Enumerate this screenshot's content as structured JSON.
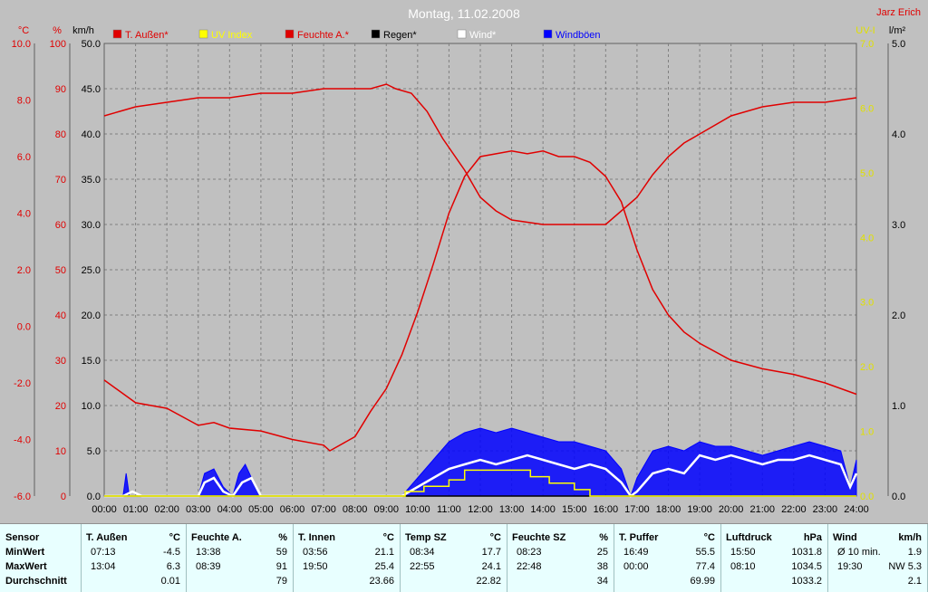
{
  "chart_data": {
    "type": "line",
    "title": "Montag, 11.02.2008",
    "corner_label": "Jarz Erich",
    "x_ticks": [
      "00:00",
      "01:00",
      "02:00",
      "03:00",
      "04:00",
      "05:00",
      "06:00",
      "07:00",
      "08:00",
      "09:00",
      "10:00",
      "11:00",
      "12:00",
      "13:00",
      "14:00",
      "15:00",
      "16:00",
      "17:00",
      "18:00",
      "19:00",
      "20:00",
      "21:00",
      "22:00",
      "23:00",
      "24:00"
    ],
    "axes": {
      "celsius": {
        "unit": "°C",
        "ticks": [
          "10.0",
          "8.0",
          "6.0",
          "4.0",
          "2.0",
          "0.0",
          "-2.0",
          "-4.0",
          "-6.0"
        ],
        "range": [
          -6,
          10
        ],
        "color": "#e00000"
      },
      "percent": {
        "unit": "%",
        "ticks": [
          "100",
          "90",
          "80",
          "70",
          "60",
          "50",
          "40",
          "30",
          "20",
          "10",
          "0"
        ],
        "range": [
          0,
          100
        ],
        "color": "#e00000"
      },
      "kmh": {
        "unit": "km/h",
        "ticks": [
          "50.0",
          "45.0",
          "40.0",
          "35.0",
          "30.0",
          "25.0",
          "20.0",
          "15.0",
          "10.0",
          "5.0",
          "0.0"
        ],
        "range": [
          0,
          50
        ],
        "color": "#000000"
      },
      "uv": {
        "unit": "UV-I",
        "ticks": [
          "7.0",
          "6.0",
          "5.0",
          "4.0",
          "3.0",
          "2.0",
          "1.0",
          "0.0"
        ],
        "range": [
          0,
          7
        ],
        "color": "#e0e000"
      },
      "rain": {
        "unit": "l/m²",
        "ticks": [
          "5.0",
          "4.0",
          "3.0",
          "2.0",
          "1.0",
          "0.0"
        ],
        "range": [
          0,
          5
        ],
        "color": "#000000"
      }
    },
    "legend": [
      {
        "name": "T. Außen*",
        "color": "#e00000"
      },
      {
        "name": "UV Index",
        "color": "#ffff00"
      },
      {
        "name": "Feuchte A.*",
        "color": "#e00000"
      },
      {
        "name": "Regen*",
        "color": "#000000"
      },
      {
        "name": "Wind*",
        "color": "#ffffff"
      },
      {
        "name": "Windböen",
        "color": "#0000ff"
      }
    ],
    "series": [
      {
        "name": "T. Außen*",
        "axis": "celsius",
        "color": "#e00000",
        "x": [
          0,
          0.5,
          1,
          2,
          3,
          3.5,
          4,
          5,
          6,
          7,
          7.2,
          8,
          8.5,
          9,
          9.5,
          10,
          10.5,
          11,
          11.5,
          12,
          12.5,
          13,
          13.5,
          14,
          14.5,
          15,
          15.5,
          16,
          16.5,
          17,
          17.5,
          18,
          18.5,
          19,
          20,
          21,
          22,
          23,
          24
        ],
        "y": [
          -1.9,
          -2.3,
          -2.7,
          -2.9,
          -3.5,
          -3.4,
          -3.6,
          -3.7,
          -4.0,
          -4.2,
          -4.4,
          -3.9,
          -3.0,
          -2.2,
          -1.0,
          0.5,
          2.2,
          4.0,
          5.3,
          6.0,
          6.1,
          6.2,
          6.1,
          6.2,
          6.0,
          6.0,
          5.8,
          5.3,
          4.4,
          2.7,
          1.3,
          0.4,
          -0.2,
          -0.6,
          -1.2,
          -1.5,
          -1.7,
          -2.0,
          -2.4
        ]
      },
      {
        "name": "Feuchte A.*",
        "axis": "percent",
        "color": "#e00000",
        "x": [
          0,
          0.5,
          1,
          2,
          3,
          4,
          5,
          6,
          7,
          8,
          8.5,
          9,
          9.3,
          9.8,
          10.3,
          10.8,
          11.5,
          12,
          12.5,
          13,
          14,
          15,
          15.5,
          16,
          16.5,
          17,
          17.5,
          18,
          18.5,
          19,
          20,
          21,
          22,
          23,
          24
        ],
        "y": [
          84,
          85,
          86,
          87,
          88,
          88,
          89,
          89,
          90,
          90,
          90,
          91,
          90,
          89,
          85,
          79,
          72,
          66,
          63,
          61,
          60,
          60,
          60,
          60,
          63,
          66,
          71,
          75,
          78,
          80,
          84,
          86,
          87,
          87,
          88
        ]
      },
      {
        "name": "UV Index",
        "axis": "uv",
        "color": "#ffff00",
        "x": [
          0,
          9.6,
          9.6,
          10.2,
          10.2,
          11,
          11,
          11.5,
          11.5,
          13.6,
          13.6,
          14.2,
          14.2,
          15,
          15,
          15.5,
          15.5,
          24
        ],
        "y": [
          0,
          0,
          0.07,
          0.07,
          0.15,
          0.15,
          0.25,
          0.25,
          0.4,
          0.4,
          0.3,
          0.3,
          0.2,
          0.2,
          0.1,
          0.1,
          0,
          0
        ]
      },
      {
        "name": "Regen*",
        "axis": "rain",
        "color": "#000000",
        "x": [
          0,
          24
        ],
        "y": [
          0,
          0
        ]
      },
      {
        "name": "Wind*",
        "axis": "kmh",
        "color": "#ffffff",
        "x": [
          0,
          0.6,
          0.9,
          1.2,
          3,
          3.2,
          3.5,
          3.8,
          4.1,
          4.4,
          4.7,
          5,
          9.5,
          10,
          10.5,
          11,
          11.5,
          12,
          12.5,
          13,
          13.5,
          14,
          14.5,
          15,
          15.5,
          16,
          16.5,
          16.8,
          17,
          17.5,
          18,
          18.5,
          19,
          19.5,
          20,
          20.5,
          21,
          21.5,
          22,
          22.5,
          23,
          23.5,
          23.8,
          24
        ],
        "y": [
          0,
          0,
          0.5,
          0,
          0,
          1.5,
          2,
          0.5,
          0,
          1.5,
          2,
          0,
          0,
          1,
          2,
          3,
          3.5,
          4,
          3.5,
          4,
          4.5,
          4,
          3.5,
          3,
          3.5,
          3,
          1.5,
          0,
          0.5,
          2.5,
          3,
          2.5,
          4.5,
          4,
          4.5,
          4,
          3.5,
          4,
          4,
          4.5,
          4,
          3.5,
          1,
          2.5
        ]
      },
      {
        "name": "Windböen",
        "axis": "kmh",
        "color": "#0000ff",
        "x": [
          0,
          0.6,
          0.7,
          0.8,
          3,
          3.2,
          3.5,
          3.8,
          4.1,
          4.3,
          4.5,
          4.7,
          5,
          9.5,
          10,
          10.5,
          11,
          11.5,
          12,
          12.5,
          13,
          13.5,
          14,
          14.5,
          15,
          15.5,
          16,
          16.5,
          16.8,
          17,
          17.5,
          18,
          18.5,
          19,
          19.5,
          20,
          20.5,
          21,
          21.5,
          22,
          22.5,
          23,
          23.5,
          23.8,
          24
        ],
        "y": [
          0,
          0,
          2.5,
          0,
          0,
          2.5,
          3,
          1,
          0,
          2.5,
          3.5,
          2,
          0,
          0,
          2,
          4,
          6,
          7,
          7.5,
          7,
          7.5,
          7,
          6.5,
          6,
          6,
          5.5,
          5,
          3,
          0,
          2,
          5,
          5.5,
          5,
          6,
          5.5,
          5.5,
          5,
          4.5,
          5,
          5.5,
          6,
          5.5,
          5,
          1,
          4
        ]
      }
    ]
  },
  "stats": {
    "row_labels": {
      "header": "Sensor",
      "min": "MinWert",
      "max": "MaxWert",
      "avg": "Durchschnitt"
    },
    "columns": [
      {
        "name": "T. Außen",
        "unit": "°C",
        "min_time": "07:13",
        "min_val": "-4.5",
        "max_time": "13:04",
        "max_val": "6.3",
        "avg": "0.01"
      },
      {
        "name": "Feuchte A.",
        "unit": "%",
        "min_time": "13:38",
        "min_val": "59",
        "max_time": "08:39",
        "max_val": "91",
        "avg": "79"
      },
      {
        "name": "T. Innen",
        "unit": "°C",
        "min_time": "03:56",
        "min_val": "21.1",
        "max_time": "19:50",
        "max_val": "25.4",
        "avg": "23.66"
      },
      {
        "name": "Temp SZ",
        "unit": "°C",
        "min_time": "08:34",
        "min_val": "17.7",
        "max_time": "22:55",
        "max_val": "24.1",
        "avg": "22.82"
      },
      {
        "name": "Feuchte SZ",
        "unit": "%",
        "min_time": "08:23",
        "min_val": "25",
        "max_time": "22:48",
        "max_val": "38",
        "avg": "34"
      },
      {
        "name": "T. Puffer",
        "unit": "°C",
        "min_time": "16:49",
        "min_val": "55.5",
        "max_time": "00:00",
        "max_val": "77.4",
        "avg": "69.99"
      },
      {
        "name": "Luftdruck",
        "unit": "hPa",
        "min_time": "15:50",
        "min_val": "1031.8",
        "max_time": "08:10",
        "max_val": "1034.5",
        "avg": "1033.2"
      },
      {
        "name": "Wind",
        "unit": "km/h",
        "min_time": "Ø 10 min.",
        "min_val": "1.9",
        "max_time": "19:30",
        "max_val": "NW 5.3",
        "avg": "2.1"
      }
    ]
  }
}
